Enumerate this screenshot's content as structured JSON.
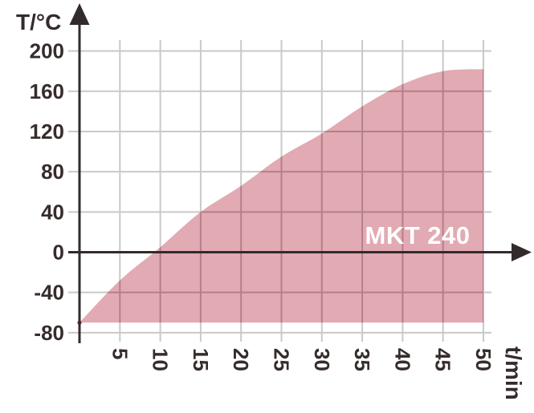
{
  "chart_data": {
    "type": "area",
    "title": "",
    "series_label": "MKT 240",
    "xlabel": "t/min",
    "ylabel": "T/°C",
    "x": [
      0,
      5,
      10,
      15,
      20,
      25,
      30,
      35,
      40,
      45,
      50
    ],
    "values": [
      -70,
      -28,
      5,
      40,
      66,
      95,
      118,
      145,
      167,
      180,
      182
    ],
    "baseline": -70,
    "x_ticks": [
      5,
      10,
      15,
      20,
      25,
      30,
      35,
      40,
      45,
      50
    ],
    "y_ticks": [
      200,
      160,
      120,
      80,
      40,
      0,
      -40,
      -80
    ],
    "xlim": [
      0,
      50
    ],
    "ylim": [
      -80,
      200
    ],
    "grid": true,
    "legend_position": "inside-right-above-x-axis",
    "colors": {
      "fill": "#e2aab3",
      "grid": "#c9c9c9",
      "grid_in_fill": "#b2808a",
      "axis": "#332b2b",
      "tick_text": "#362c2c",
      "series_text": "#ffffff",
      "start_dot": "#7c2b33",
      "background": "#ffffff"
    }
  }
}
